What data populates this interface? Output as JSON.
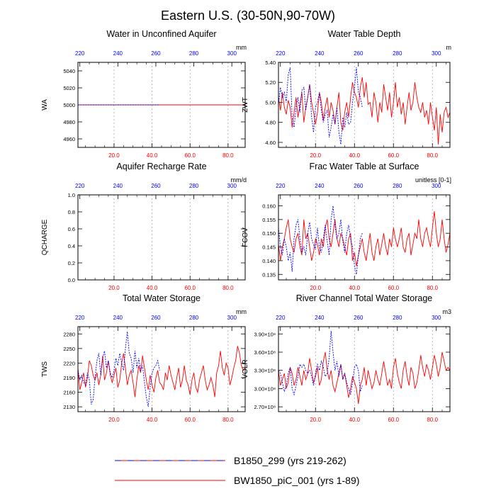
{
  "page": {
    "title": "Eastern U.S. (30-50N,90-70W)"
  },
  "colors": {
    "series_a": "#0000ff",
    "series_b": "#ff0000",
    "top_axis_labels": "#0000ff",
    "bottom_axis_labels": "#ff0000",
    "frame": "#000000",
    "grid": "#999999"
  },
  "legend": {
    "a": "B1850_299 (yrs 219-262)",
    "b": "BW1850_piC_001 (yrs 1-89)"
  },
  "chart_data": [
    {
      "type": "line",
      "title": "Water in Unconfined Aquifer",
      "ylabel": "WA",
      "units": "mm",
      "ylim": [
        4950,
        5050
      ],
      "yticks": [
        4960,
        4980,
        5000,
        5020,
        5040
      ],
      "ytick_labels": [
        "4960",
        "4980",
        "5000",
        "5020",
        "5040"
      ],
      "bottom_x_ticks": [
        "20.0",
        "40.0",
        "60.0",
        "80.0"
      ],
      "top_x_ticks": [
        "220",
        "240",
        "260",
        "280",
        "300"
      ],
      "series": [
        {
          "name": "B1850_299 (yrs 219-262)",
          "x_start": 219,
          "values": [
            5000,
            5000,
            5000,
            5000,
            5000,
            5000,
            5000,
            5000,
            5000,
            5000,
            5000,
            5000,
            5000,
            5000,
            5000,
            5000,
            5000,
            5000,
            5000,
            5000,
            5000,
            5000,
            5000,
            5000,
            5000,
            5000,
            5000,
            5000,
            5000,
            5000,
            5000,
            5000,
            5000,
            5000,
            5000,
            5000,
            5000,
            5000,
            5000,
            5000,
            5000,
            5000,
            5000,
            5000
          ]
        },
        {
          "name": "BW1850_piC_001 (yrs 1-89)",
          "x_start": 1,
          "values": [
            5000,
            5000,
            5000,
            5000,
            5000,
            5000,
            5000,
            5000,
            5000,
            5000,
            5000,
            5000,
            5000,
            5000,
            5000,
            5000,
            5000,
            5000,
            5000,
            5000,
            5000,
            5000,
            5000,
            5000,
            5000,
            5000,
            5000,
            5000,
            5000,
            5000,
            5000,
            5000,
            5000,
            5000,
            5000,
            5000,
            5000,
            5000,
            5000,
            5000,
            5000,
            5000,
            5000,
            5000,
            5000,
            5000,
            5000,
            5000,
            5000,
            5000,
            5000,
            5000,
            5000,
            5000,
            5000,
            5000,
            5000,
            5000,
            5000,
            5000,
            5000,
            5000,
            5000,
            5000,
            5000,
            5000,
            5000,
            5000,
            5000,
            5000,
            5000,
            5000,
            5000,
            5000,
            5000,
            5000,
            5000,
            5000,
            5000,
            5000,
            5000,
            5000,
            5000,
            5000,
            5000,
            5000,
            5000,
            5000,
            5000
          ]
        }
      ]
    },
    {
      "type": "line",
      "title": "Water Table Depth",
      "ylabel": "ZWT",
      "units": "m",
      "ylim": [
        4.55,
        5.4
      ],
      "yticks": [
        4.6,
        4.8,
        5.0,
        5.2,
        5.4
      ],
      "ytick_labels": [
        "4.60",
        "4.80",
        "5.00",
        "5.20",
        "5.40"
      ],
      "bottom_x_ticks": [
        "20.0",
        "40.0",
        "60.0",
        "80.0"
      ],
      "top_x_ticks": [
        "220",
        "240",
        "260",
        "280",
        "300"
      ],
      "series": [
        {
          "name": "B1850_299 (yrs 219-262)",
          "x_start": 219,
          "values": [
            4.98,
            5.15,
            5.05,
            5.1,
            5.0,
            5.28,
            5.35,
            4.85,
            4.75,
            4.95,
            5.05,
            4.9,
            5.12,
            5.15,
            4.92,
            5.05,
            5.18,
            4.85,
            4.7,
            4.95,
            5.0,
            5.1,
            4.92,
            4.8,
            4.88,
            4.92,
            4.65,
            4.75,
            4.88,
            4.78,
            4.95,
            4.7,
            4.58,
            4.85,
            4.75,
            4.9,
            4.78,
            4.8,
            5.0,
            5.15,
            5.35,
            5.1,
            5.05,
            4.95
          ]
        },
        {
          "name": "BW1850_piC_001 (yrs 1-89)",
          "x_start": 1,
          "values": [
            5.05,
            4.92,
            5.1,
            4.95,
            4.88,
            5.02,
            4.95,
            4.75,
            4.9,
            5.05,
            4.85,
            4.98,
            5.1,
            4.8,
            4.95,
            5.05,
            5.18,
            5.0,
            4.9,
            4.78,
            4.9,
            5.1,
            5.0,
            4.82,
            4.95,
            5.05,
            4.85,
            5.0,
            4.92,
            4.78,
            4.95,
            5.1,
            4.8,
            4.72,
            4.9,
            5.0,
            4.85,
            5.05,
            5.2,
            5.1,
            5.05,
            4.95,
            5.15,
            5.25,
            5.05,
            5.2,
            4.98,
            5.0,
            4.85,
            5.1,
            5.0,
            4.8,
            5.0,
            4.9,
            5.18,
            5.05,
            4.92,
            5.1,
            4.85,
            5.0,
            5.2,
            4.95,
            5.05,
            4.88,
            5.0,
            4.78,
            4.95,
            5.1,
            4.92,
            5.0,
            5.2,
            5.05,
            4.95,
            4.9,
            5.0,
            4.85,
            4.92,
            4.78,
            5.0,
            4.85,
            4.72,
            4.95,
            4.58,
            4.88,
            4.7,
            4.9,
            4.95,
            4.85,
            4.9
          ]
        }
      ]
    },
    {
      "type": "line",
      "title": "Aquifer Recharge Rate",
      "ylabel": "QCHARGE",
      "units": "mm/d",
      "ylim": [
        0,
        1
      ],
      "yticks": [
        0,
        0.2,
        0.4,
        0.6,
        0.8,
        1.0
      ],
      "ytick_labels": [
        "0.0",
        "0.2",
        "0.4",
        "0.6",
        "0.8",
        "1.0"
      ],
      "bottom_x_ticks": [
        "20.0",
        "40.0",
        "60.0",
        "80.0"
      ],
      "top_x_ticks": [
        "220",
        "240",
        "260",
        "280",
        "300"
      ],
      "series": []
    },
    {
      "type": "line",
      "title": "Frac Water Table at Surface",
      "ylabel": "FCOV",
      "units": "unitless [0-1]",
      "ylim": [
        0.133,
        0.164
      ],
      "yticks": [
        0.135,
        0.14,
        0.145,
        0.15,
        0.155,
        0.16
      ],
      "ytick_labels": [
        "0.135",
        "0.140",
        "0.145",
        "0.150",
        "0.155",
        "0.160"
      ],
      "bottom_x_ticks": [
        "20.0",
        "40.0",
        "60.0",
        "80.0"
      ],
      "top_x_ticks": [
        "220",
        "240",
        "260",
        "280",
        "300"
      ],
      "series": [
        {
          "name": "B1850_299 (yrs 219-262)",
          "x_start": 219,
          "values": [
            0.152,
            0.145,
            0.142,
            0.148,
            0.145,
            0.14,
            0.143,
            0.136,
            0.148,
            0.153,
            0.155,
            0.148,
            0.143,
            0.145,
            0.142,
            0.15,
            0.154,
            0.148,
            0.146,
            0.144,
            0.152,
            0.145,
            0.143,
            0.148,
            0.153,
            0.147,
            0.142,
            0.155,
            0.16,
            0.153,
            0.148,
            0.15,
            0.155,
            0.147,
            0.143,
            0.15,
            0.153,
            0.148,
            0.145,
            0.138,
            0.135,
            0.142,
            0.148,
            0.15
          ]
        },
        {
          "name": "BW1850_piC_001 (yrs 1-89)",
          "x_start": 1,
          "values": [
            0.146,
            0.14,
            0.145,
            0.148,
            0.152,
            0.155,
            0.148,
            0.145,
            0.143,
            0.148,
            0.15,
            0.145,
            0.142,
            0.155,
            0.148,
            0.15,
            0.145,
            0.14,
            0.143,
            0.148,
            0.146,
            0.142,
            0.148,
            0.145,
            0.152,
            0.155,
            0.148,
            0.145,
            0.15,
            0.155,
            0.148,
            0.145,
            0.15,
            0.148,
            0.145,
            0.142,
            0.148,
            0.15,
            0.14,
            0.143,
            0.138,
            0.142,
            0.145,
            0.148,
            0.143,
            0.14,
            0.145,
            0.15,
            0.143,
            0.14,
            0.145,
            0.148,
            0.142,
            0.146,
            0.15,
            0.145,
            0.142,
            0.148,
            0.145,
            0.152,
            0.148,
            0.145,
            0.148,
            0.152,
            0.145,
            0.143,
            0.148,
            0.15,
            0.142,
            0.146,
            0.15,
            0.148,
            0.155,
            0.148,
            0.145,
            0.15,
            0.152,
            0.148,
            0.145,
            0.152,
            0.158,
            0.15,
            0.145,
            0.148,
            0.155,
            0.148,
            0.143,
            0.146,
            0.15
          ]
        }
      ]
    },
    {
      "type": "line",
      "title": "Total Water Storage",
      "ylabel": "TWS",
      "units": "mm",
      "ylim": [
        2120,
        2295
      ],
      "yticks": [
        2130,
        2160,
        2190,
        2220,
        2250,
        2280
      ],
      "ytick_labels": [
        "2130",
        "2160",
        "2190",
        "2220",
        "2250",
        "2280"
      ],
      "bottom_x_ticks": [
        "20.0",
        "40.0",
        "60.0",
        "80.0"
      ],
      "top_x_ticks": [
        "220",
        "240",
        "260",
        "280",
        "300"
      ],
      "series": [
        {
          "name": "B1850_299 (yrs 219-262)",
          "x_start": 219,
          "values": [
            2205,
            2185,
            2195,
            2180,
            2175,
            2200,
            2185,
            2135,
            2145,
            2190,
            2225,
            2240,
            2195,
            2230,
            2245,
            2210,
            2225,
            2200,
            2190,
            2205,
            2230,
            2215,
            2240,
            2220,
            2205,
            2250,
            2285,
            2240,
            2230,
            2200,
            2245,
            2210,
            2230,
            2205,
            2215,
            2180,
            2150,
            2130,
            2170,
            2200,
            2210,
            2215,
            2225,
            2205
          ]
        },
        {
          "name": "BW1850_piC_001 (yrs 1-89)",
          "x_start": 1,
          "values": [
            2210,
            2165,
            2180,
            2200,
            2170,
            2190,
            2225,
            2215,
            2195,
            2185,
            2200,
            2175,
            2195,
            2235,
            2185,
            2200,
            2225,
            2195,
            2180,
            2195,
            2210,
            2170,
            2185,
            2220,
            2240,
            2210,
            2175,
            2195,
            2205,
            2180,
            2150,
            2185,
            2215,
            2200,
            2235,
            2210,
            2185,
            2165,
            2195,
            2175,
            2160,
            2190,
            2205,
            2180,
            2175,
            2165,
            2200,
            2185,
            2215,
            2195,
            2180,
            2165,
            2190,
            2210,
            2170,
            2185,
            2215,
            2185,
            2175,
            2155,
            2185,
            2200,
            2170,
            2160,
            2185,
            2200,
            2215,
            2185,
            2165,
            2175,
            2190,
            2175,
            2150,
            2200,
            2215,
            2245,
            2210,
            2195,
            2220,
            2210,
            2175,
            2190,
            2210,
            2225,
            2255,
            2240,
            2215,
            2205,
            2210
          ]
        }
      ]
    },
    {
      "type": "line",
      "title": "River Channel Total Water Storage",
      "ylabel": "VOLR",
      "units": "m3",
      "ylim": [
        2.62,
        4.02
      ],
      "yticks": [
        2.7,
        3.0,
        3.3,
        3.6,
        3.9
      ],
      "ytick_labels": [
        "2.70×10⁸",
        "3.00×10⁸",
        "3.30×10⁸",
        "3.60×10⁸",
        "3.90×10⁸"
      ],
      "bottom_x_ticks": [
        "20.0",
        "40.0",
        "60.0",
        "80.0"
      ],
      "top_x_ticks": [
        "220",
        "240",
        "260",
        "280",
        "300"
      ],
      "series": [
        {
          "name": "B1850_299 (yrs 219-262)",
          "x_start": 219,
          "values": [
            3.3,
            3.25,
            3.1,
            2.95,
            3.05,
            3.25,
            3.35,
            3.0,
            2.9,
            3.05,
            3.2,
            3.4,
            3.35,
            3.4,
            3.3,
            3.25,
            3.3,
            3.2,
            3.05,
            3.25,
            3.4,
            3.3,
            3.45,
            3.35,
            3.2,
            3.25,
            3.5,
            3.95,
            3.6,
            3.3,
            3.45,
            3.2,
            3.4,
            3.15,
            3.25,
            3.1,
            3.0,
            2.9,
            3.1,
            3.35,
            3.4,
            3.3,
            2.95,
            3.05
          ]
        },
        {
          "name": "BW1850_piC_001 (yrs 1-89)",
          "x_start": 1,
          "values": [
            3.3,
            3.05,
            3.15,
            3.25,
            3.0,
            3.1,
            3.35,
            3.25,
            3.05,
            3.15,
            3.35,
            3.2,
            3.05,
            3.3,
            3.15,
            3.25,
            3.5,
            3.3,
            3.1,
            3.2,
            3.35,
            3.05,
            3.15,
            3.45,
            3.6,
            3.3,
            3.15,
            3.3,
            3.05,
            2.95,
            3.1,
            3.25,
            3.4,
            3.15,
            3.25,
            3.05,
            2.85,
            3.0,
            3.2,
            3.1,
            3.0,
            2.75,
            3.05,
            3.15,
            3.35,
            3.05,
            3.3,
            3.15,
            3.0,
            3.1,
            3.3,
            3.15,
            3.05,
            3.25,
            3.45,
            3.25,
            3.05,
            3.15,
            3.0,
            3.35,
            3.5,
            3.25,
            3.1,
            3.0,
            3.3,
            3.45,
            3.2,
            3.05,
            3.35,
            3.25,
            3.0,
            3.1,
            3.3,
            3.55,
            3.35,
            3.2,
            3.4,
            3.3,
            3.15,
            3.35,
            3.55,
            3.4,
            3.2,
            3.35,
            3.6,
            3.45,
            3.3,
            3.35,
            3.3
          ]
        }
      ]
    }
  ]
}
